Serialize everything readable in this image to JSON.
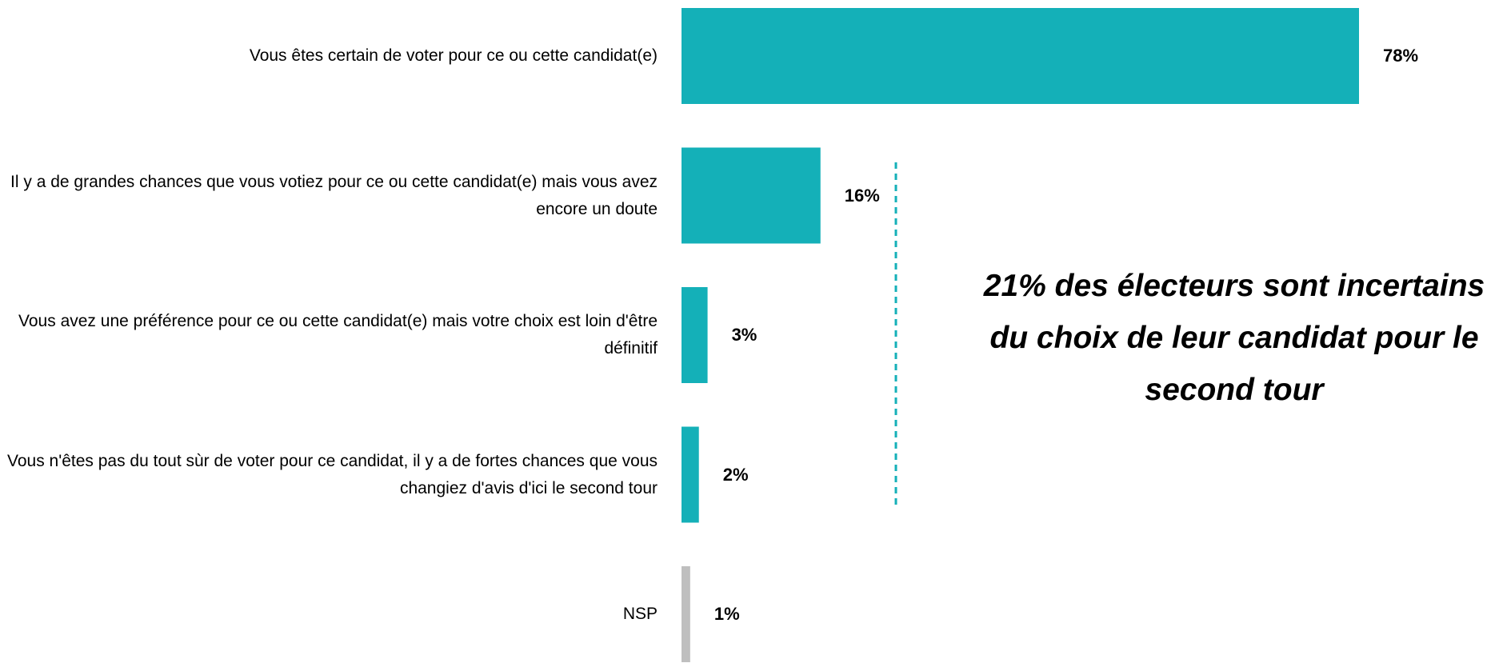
{
  "chart_data": {
    "type": "hbar",
    "categories": [
      "Vous êtes certain de voter pour ce ou cette candidat(e)",
      "Il y a de grandes chances que vous votiez pour ce ou cette candidat(e) mais vous avez encore un doute",
      "Vous avez une préférence pour ce ou cette candidat(e) mais votre choix est loin d'être définitif",
      "Vous n'êtes pas du tout sùr de voter pour ce candidat, il y a de fortes chances que vous changiez d'avis d'ici le second tour",
      "NSP"
    ],
    "values": [
      78,
      16,
      3,
      2,
      1
    ],
    "value_labels": [
      "78%",
      "16%",
      "3%",
      "2%",
      "1%"
    ],
    "colors": [
      "#14b0b8",
      "#14b0b8",
      "#14b0b8",
      "#14b0b8",
      "#bfbfbf"
    ],
    "xlim": [
      0,
      78
    ],
    "annotation": "21% des électeurs sont incertains du choix de leur candidat pour le second tour"
  }
}
